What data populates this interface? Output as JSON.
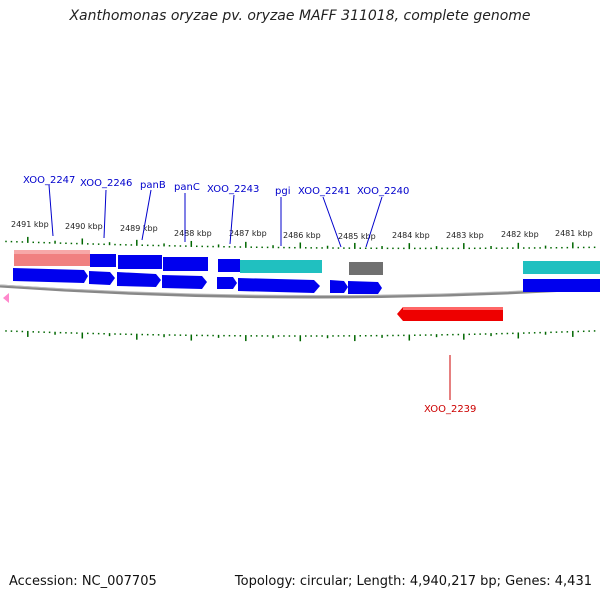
{
  "title": "Xanthomonas oryzae pv. oryzae MAFF 311018, complete genome",
  "footer": {
    "accession": "Accession: NC_007705",
    "summary": "Topology: circular; Length: 4,940,217 bp; Genes: 4,431"
  },
  "colors": {
    "forward_gene": "#0000ee",
    "reverse_gene": "#ee0000",
    "cds_salmon": "#f08080",
    "cds_teal": "#20c0c0",
    "cds_gray": "#707070",
    "tick": "#006600",
    "backbone": "#888888",
    "label_forward": "#0000cc",
    "label_reverse": "#cc0000",
    "nav_marker": "#ff88cc"
  },
  "kbp_labels": [
    {
      "text": "2491 kbp",
      "pos": 2491
    },
    {
      "text": "2490 kbp",
      "pos": 2490
    },
    {
      "text": "2489 kbp",
      "pos": 2489
    },
    {
      "text": "2488 kbp",
      "pos": 2488
    },
    {
      "text": "2487 kbp",
      "pos": 2487
    },
    {
      "text": "2486 kbp",
      "pos": 2486
    },
    {
      "text": "2485 kbp",
      "pos": 2485
    },
    {
      "text": "2484 kbp",
      "pos": 2484
    },
    {
      "text": "2483 kbp",
      "pos": 2483
    },
    {
      "text": "2482 kbp",
      "pos": 2482
    },
    {
      "text": "2481 kbp",
      "pos": 2481
    }
  ],
  "gene_labels_top": [
    {
      "name": "XOO_2247",
      "pos": 2490.6
    },
    {
      "name": "XOO_2246",
      "pos": 2489.9
    },
    {
      "name": "panB",
      "pos": 2489.1
    },
    {
      "name": "panC",
      "pos": 2488.2
    },
    {
      "name": "XOO_2243",
      "pos": 2487.2
    },
    {
      "name": "pgi",
      "pos": 2486.1
    },
    {
      "name": "XOO_2241",
      "pos": 2485.1
    },
    {
      "name": "XOO_2240",
      "pos": 2484.8
    }
  ],
  "gene_labels_bottom": [
    {
      "name": "XOO_2239",
      "pos": 2483.2
    }
  ]
}
